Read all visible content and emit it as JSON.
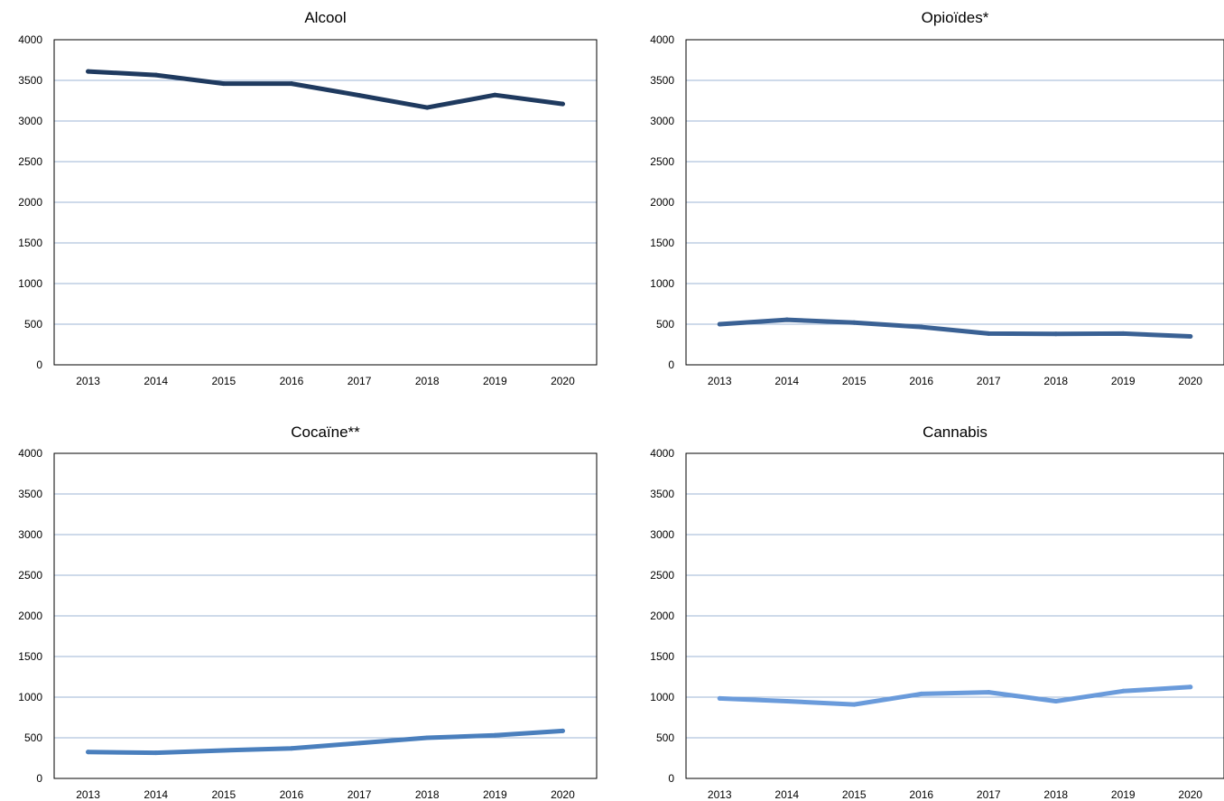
{
  "chart_data": [
    {
      "type": "line",
      "title": "Alcool",
      "categories": [
        "2013",
        "2014",
        "2015",
        "2016",
        "2017",
        "2018",
        "2019",
        "2020"
      ],
      "values": [
        3610,
        3565,
        3460,
        3460,
        3315,
        3165,
        3320,
        3210
      ],
      "ylim": [
        0,
        4000
      ],
      "yticks": [
        0,
        500,
        1000,
        1500,
        2000,
        2500,
        3000,
        3500,
        4000
      ],
      "color": "#1f3a5f",
      "grid": true
    },
    {
      "type": "line",
      "title": "Opioïdes*",
      "categories": [
        "2013",
        "2014",
        "2015",
        "2016",
        "2017",
        "2018",
        "2019",
        "2020"
      ],
      "values": [
        500,
        555,
        520,
        465,
        385,
        380,
        385,
        350
      ],
      "ylim": [
        0,
        4000
      ],
      "yticks": [
        0,
        500,
        1000,
        1500,
        2000,
        2500,
        3000,
        3500,
        4000
      ],
      "color": "#3a6194",
      "grid": true
    },
    {
      "type": "line",
      "title": "Cocaïne**",
      "categories": [
        "2013",
        "2014",
        "2015",
        "2016",
        "2017",
        "2018",
        "2019",
        "2020"
      ],
      "values": [
        325,
        315,
        345,
        370,
        435,
        500,
        530,
        585
      ],
      "ylim": [
        0,
        4000
      ],
      "yticks": [
        0,
        500,
        1000,
        1500,
        2000,
        2500,
        3000,
        3500,
        4000
      ],
      "color": "#4a7fbd",
      "grid": true
    },
    {
      "type": "line",
      "title": "Cannabis",
      "categories": [
        "2013",
        "2014",
        "2015",
        "2016",
        "2017",
        "2018",
        "2019",
        "2020"
      ],
      "values": [
        985,
        950,
        910,
        1040,
        1060,
        950,
        1075,
        1125
      ],
      "ylim": [
        0,
        4000
      ],
      "yticks": [
        0,
        500,
        1000,
        1500,
        2000,
        2500,
        3000,
        3500,
        4000
      ],
      "color": "#6a9bdb",
      "grid": true
    }
  ]
}
